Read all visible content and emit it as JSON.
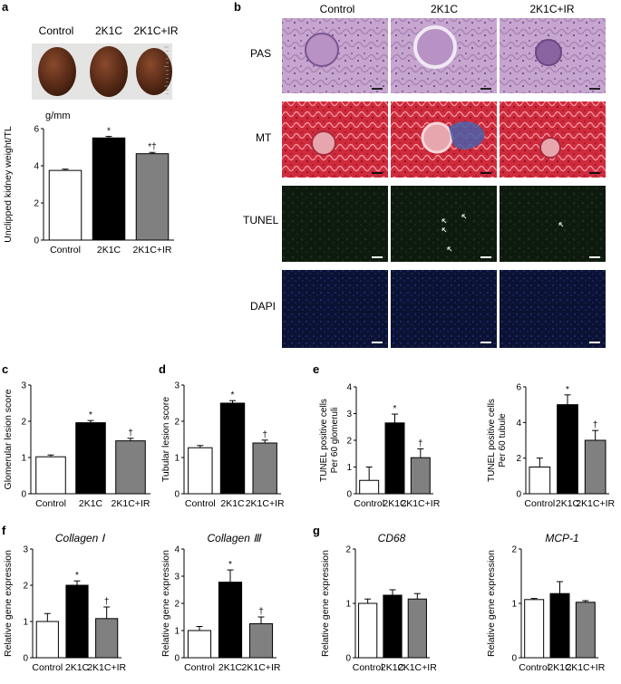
{
  "panel_letters": [
    "a",
    "b",
    "c",
    "d",
    "e",
    "f",
    "g"
  ],
  "groups": [
    "Control",
    "2K1C",
    "2K1C+IR"
  ],
  "colors": {
    "control": "#ffffff",
    "k1c": "#000000",
    "ir": "#808080",
    "stroke": "#000000"
  },
  "panel_a": {
    "photo_labels": [
      "Control",
      "2K1C",
      "2K1C+IR"
    ],
    "unit": "g/mm"
  },
  "panel_b": {
    "columns": [
      "Control",
      "2K1C",
      "2K1C+IR"
    ],
    "rows": [
      "PAS",
      "MT",
      "TUNEL",
      "DAPI"
    ]
  },
  "chart_data": [
    {
      "id": "a",
      "type": "bar",
      "categories": [
        "Control",
        "2K1C",
        "2K1C+IR"
      ],
      "values": [
        3.75,
        5.5,
        4.65
      ],
      "errors": [
        0.07,
        0.08,
        0.07
      ],
      "marks": [
        "",
        "*",
        "*†"
      ],
      "ylabel": "Unclipped kidney weight/TL",
      "ylim": [
        0,
        6
      ],
      "yticks": [
        0,
        2,
        4,
        6
      ]
    },
    {
      "id": "c",
      "type": "bar",
      "categories": [
        "Control",
        "2K1C",
        "2K1C+IR"
      ],
      "values": [
        1.02,
        1.96,
        1.46
      ],
      "errors": [
        0.05,
        0.06,
        0.07
      ],
      "marks": [
        "",
        "*",
        "†"
      ],
      "ylabel": "Glomerular lesion score",
      "ylim": [
        0,
        3
      ],
      "yticks": [
        0,
        1,
        2,
        3
      ]
    },
    {
      "id": "d",
      "type": "bar",
      "categories": [
        "Control",
        "2K1C",
        "2K1C+IR"
      ],
      "values": [
        1.27,
        2.5,
        1.4
      ],
      "errors": [
        0.06,
        0.07,
        0.08
      ],
      "marks": [
        "",
        "*",
        "†"
      ],
      "ylabel": "Tubular lesion score",
      "ylim": [
        0,
        3
      ],
      "yticks": [
        0,
        1,
        2,
        3
      ]
    },
    {
      "id": "e1",
      "type": "bar",
      "categories": [
        "Control",
        "2K1C",
        "2K1C+IR"
      ],
      "values": [
        0.5,
        2.65,
        1.35
      ],
      "errors": [
        0.5,
        0.33,
        0.33
      ],
      "marks": [
        "",
        "*",
        "†"
      ],
      "ylabel": "TUNEL positive cells Per 60 glomeruli",
      "ylabel_lines": [
        "TUNEL positive cells",
        "Per 60 glomeruli"
      ],
      "ylim": [
        0,
        4
      ],
      "yticks": [
        0,
        1,
        2,
        3,
        4
      ]
    },
    {
      "id": "e2",
      "type": "bar",
      "categories": [
        "Control",
        "2K1C",
        "2K1C+IR"
      ],
      "values": [
        1.5,
        5.0,
        3.0
      ],
      "errors": [
        0.5,
        0.55,
        0.55
      ],
      "marks": [
        "",
        "*",
        "†"
      ],
      "ylabel": "TUNEL positive cells Per 60 tubule",
      "ylabel_lines": [
        "TUNEL positive cells",
        "Per 60 tubule"
      ],
      "ylim": [
        0,
        6
      ],
      "yticks": [
        0,
        2,
        4,
        6
      ]
    },
    {
      "id": "f1",
      "type": "bar",
      "title": "Collagen Ⅰ",
      "categories": [
        "Control",
        "2K1C",
        "2K1C+IR"
      ],
      "values": [
        1.0,
        2.0,
        1.08
      ],
      "errors": [
        0.22,
        0.12,
        0.32
      ],
      "marks": [
        "",
        "*",
        "†"
      ],
      "ylabel": "Relative gene expression",
      "ylim": [
        0,
        3
      ],
      "yticks": [
        0,
        1,
        2,
        3
      ]
    },
    {
      "id": "f2",
      "type": "bar",
      "title": "Collagen Ⅲ",
      "categories": [
        "Control",
        "2K1C",
        "2K1C+IR"
      ],
      "values": [
        1.0,
        2.78,
        1.25
      ],
      "errors": [
        0.15,
        0.45,
        0.25
      ],
      "marks": [
        "",
        "*",
        "†"
      ],
      "ylabel": "Relative gene expression",
      "ylim": [
        0,
        4
      ],
      "yticks": [
        0,
        1,
        2,
        3,
        4
      ]
    },
    {
      "id": "g1",
      "type": "bar",
      "title": "CD68",
      "categories": [
        "Control",
        "2K1C",
        "2K1C+IR"
      ],
      "values": [
        1.0,
        1.15,
        1.08
      ],
      "errors": [
        0.08,
        0.1,
        0.1
      ],
      "marks": [
        "",
        "",
        ""
      ],
      "ylabel": "Relative gene expression",
      "ylim": [
        0,
        2
      ],
      "yticks": [
        0,
        1,
        2
      ]
    },
    {
      "id": "g2",
      "type": "bar",
      "title": "MCP-1",
      "categories": [
        "Control",
        "2K1C",
        "2K1C+IR"
      ],
      "values": [
        1.07,
        1.18,
        1.02
      ],
      "errors": [
        0.02,
        0.22,
        0.03
      ],
      "marks": [
        "",
        "",
        ""
      ],
      "ylabel": "Relative gene expression",
      "ylim": [
        0,
        2
      ],
      "yticks": [
        0,
        1,
        2
      ]
    }
  ]
}
